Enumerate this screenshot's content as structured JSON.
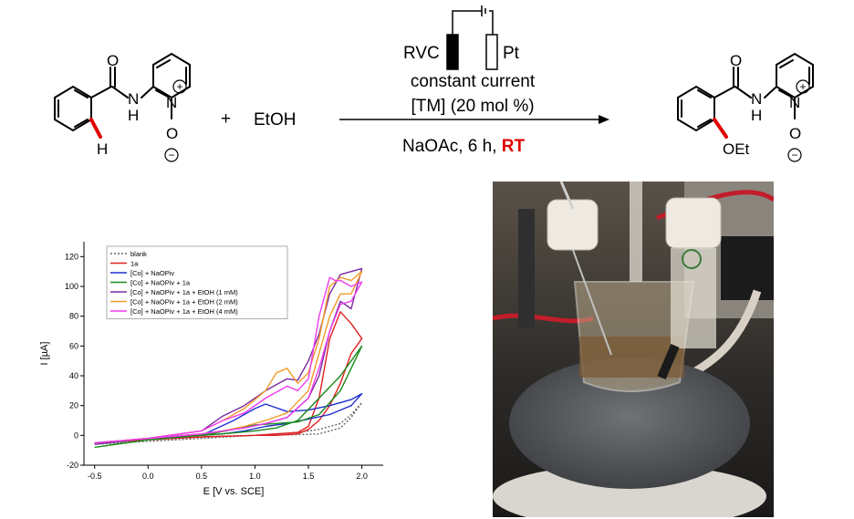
{
  "reaction": {
    "plus": "+",
    "reagent": "EtOH",
    "cell": {
      "anode": "RVC",
      "cathode": "Pt"
    },
    "conditions_above": [
      "constant current",
      "[TM] (20 mol %)"
    ],
    "conditions_below": {
      "prefix": "NaOAc, 6 h, ",
      "highlight": "RT"
    },
    "colors": {
      "highlight": "#e00000",
      "bond_highlight": "#e00000"
    },
    "reactant_labels": {
      "O": "O",
      "NH": "N",
      "H_of_NH": "H",
      "N_oxide": "N",
      "O_minus": "O",
      "plus": "+",
      "minus": "−",
      "ortho_H": "H"
    },
    "product_labels": {
      "O": "O",
      "NH": "N",
      "H_of_NH": "H",
      "N_oxide": "N",
      "O_minus": "O",
      "plus": "+",
      "minus": "−",
      "OEt": "OEt"
    }
  },
  "chart_data": {
    "type": "line",
    "xlabel": "E [V vs. SCE]",
    "ylabel": "I [µA]",
    "xlim": [
      -0.6,
      2.2
    ],
    "ylim": [
      -20,
      130
    ],
    "xticks": [
      "-0.5",
      "0.0",
      "0.5",
      "1.0",
      "1.5",
      "2.0"
    ],
    "yticks": [
      "-20",
      "0",
      "20",
      "40",
      "60",
      "80",
      "100",
      "120"
    ],
    "legend_position": "top-left",
    "series": [
      {
        "name": "blank",
        "color": "#666666",
        "dash": "2,2",
        "x": [
          -0.5,
          0.0,
          0.5,
          1.0,
          1.4,
          1.6,
          1.8,
          1.9,
          2.0,
          1.9,
          1.8,
          1.6,
          1.4,
          1.0,
          0.5,
          0.0,
          -0.5
        ],
        "y": [
          -6,
          -4,
          -2,
          0,
          0.5,
          1,
          5,
          12,
          22,
          14,
          8,
          4,
          2,
          0,
          -1,
          -3,
          -6
        ]
      },
      {
        "name": "1a",
        "color": "#e02020",
        "dash": "",
        "x": [
          -0.5,
          0.0,
          0.5,
          1.0,
          1.4,
          1.5,
          1.6,
          1.7,
          1.8,
          1.9,
          2.0,
          1.9,
          1.8,
          1.7,
          1.6,
          1.5,
          1.4,
          1.2,
          1.0,
          0.5,
          0.0,
          -0.5
        ],
        "y": [
          -5,
          -3,
          -1,
          0,
          2,
          6,
          25,
          65,
          83,
          75,
          65,
          55,
          35,
          20,
          10,
          4,
          1,
          0,
          0,
          -1,
          -3,
          -5
        ]
      },
      {
        "name": "[Co] + NaOPiv",
        "color": "#1f2fd0",
        "dash": "",
        "x": [
          -0.5,
          0.0,
          0.5,
          0.8,
          1.0,
          1.1,
          1.3,
          1.5,
          1.7,
          1.9,
          2.0,
          1.9,
          1.7,
          1.5,
          1.3,
          1.1,
          0.9,
          0.7,
          0.5,
          0.0,
          -0.5
        ],
        "y": [
          -5,
          -2,
          0,
          10,
          18,
          21,
          16,
          17,
          20,
          24,
          28,
          20,
          14,
          11,
          8,
          6,
          3,
          1,
          0,
          -2,
          -5
        ]
      },
      {
        "name": "[Co] + NaOPiv + 1a",
        "color": "#1a8a1a",
        "dash": "",
        "x": [
          -0.5,
          0.0,
          0.5,
          0.8,
          1.0,
          1.2,
          1.4,
          1.6,
          1.8,
          1.9,
          2.0,
          1.9,
          1.8,
          1.6,
          1.4,
          1.2,
          1.0,
          0.7,
          0.5,
          0.0,
          -0.5
        ],
        "y": [
          -8,
          -3,
          0,
          4,
          7,
          8,
          9,
          14,
          30,
          45,
          60,
          50,
          40,
          25,
          10,
          5,
          3,
          1,
          0,
          -3,
          -8
        ]
      },
      {
        "name": "[Co] + NaOPiv + 1a + EtOH (1 mM)",
        "color": "#7a2aa0",
        "dash": "",
        "x": [
          -0.5,
          0.0,
          0.5,
          0.7,
          0.9,
          1.1,
          1.3,
          1.4,
          1.5,
          1.6,
          1.7,
          1.8,
          1.9,
          2.0,
          1.9,
          1.8,
          1.7,
          1.6,
          1.5,
          1.3,
          1.1,
          0.9,
          0.7,
          0.5,
          0.0,
          -0.5
        ],
        "y": [
          -6,
          -2,
          3,
          13,
          20,
          30,
          38,
          37,
          50,
          68,
          95,
          108,
          110,
          112,
          85,
          90,
          70,
          40,
          25,
          12,
          8,
          5,
          3,
          1,
          -2,
          -6
        ]
      },
      {
        "name": "[Co] + NaOPiv + 1a + EtOH (2 mM)",
        "color": "#f29a28",
        "dash": "",
        "x": [
          -0.5,
          0.0,
          0.5,
          0.7,
          0.9,
          1.1,
          1.2,
          1.3,
          1.4,
          1.5,
          1.6,
          1.7,
          1.8,
          1.9,
          2.0,
          1.9,
          1.8,
          1.7,
          1.6,
          1.5,
          1.3,
          1.1,
          0.9,
          0.7,
          0.5,
          0.0,
          -0.5
        ],
        "y": [
          -5,
          -2,
          3,
          10,
          18,
          30,
          42,
          45,
          35,
          42,
          65,
          100,
          106,
          104,
          110,
          95,
          95,
          80,
          55,
          30,
          15,
          10,
          6,
          3,
          1,
          -2,
          -5
        ]
      },
      {
        "name": "[Co] + NaOPiv + 1a + EtOH (4 mM)",
        "color": "#f03cf0",
        "dash": "",
        "x": [
          -0.5,
          0.0,
          0.5,
          0.7,
          0.9,
          1.1,
          1.3,
          1.4,
          1.5,
          1.6,
          1.7,
          1.75,
          1.8,
          1.9,
          2.0,
          1.9,
          1.8,
          1.7,
          1.6,
          1.5,
          1.3,
          1.1,
          0.9,
          0.7,
          0.5,
          0.0,
          -0.5
        ],
        "y": [
          -5,
          -2,
          3,
          10,
          15,
          25,
          33,
          30,
          38,
          80,
          106,
          104,
          104,
          100,
          103,
          90,
          88,
          70,
          45,
          25,
          12,
          8,
          5,
          3,
          1,
          -2,
          -5
        ]
      }
    ]
  }
}
